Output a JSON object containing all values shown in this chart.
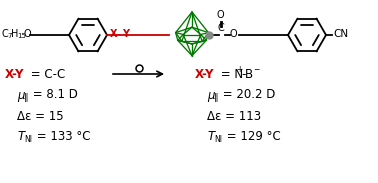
{
  "bg_color": "#ffffff",
  "black": "#000000",
  "red": "#cc0000",
  "green": "#007700",
  "gray": "#888888",
  "figsize": [
    3.78,
    1.83
  ],
  "dpi": 100,
  "c7h15o": "C",
  "c7h15o_sub1": "7",
  "c7h15o_h": "H",
  "c7h15o_sub2": "15",
  "c7h15o_o": "O",
  "cn_text": "CN",
  "mu_sym": "μ",
  "parallel": "‖",
  "delta": "Δ",
  "epsilon": "ε",
  "left_eq": "X-Y = C-C",
  "right_eq_xy": "X-Y",
  "right_eq_rest": " = N",
  "right_eq_plus": "+",
  "right_eq_b": "-B",
  "right_eq_minus": "−",
  "mu_left_val": " = 8.1 D",
  "mu_right_val": " = 20.2 D",
  "de_left_val": " = 15",
  "de_right_val": " = 113",
  "tni_left_val": " = 133 °C",
  "tni_right_val": " = 129 °C"
}
